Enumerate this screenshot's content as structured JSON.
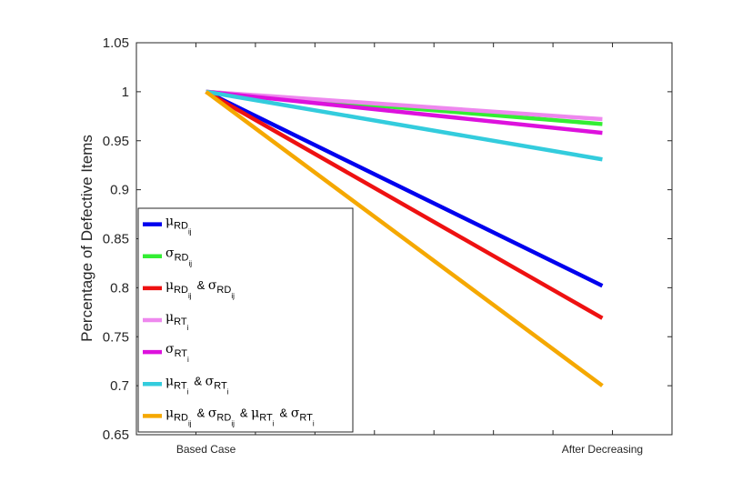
{
  "chart_data": {
    "type": "line",
    "categories": [
      "Based Case",
      "After Decreasing"
    ],
    "ylabel": "Percentage of Defective Items",
    "ylim": [
      0.65,
      1.05
    ],
    "yticks": [
      "0.65",
      "0.7",
      "0.75",
      "0.8",
      "0.85",
      "0.9",
      "0.95",
      "1",
      "1.05"
    ],
    "grid": false,
    "legend_position": "bottom-left",
    "series": [
      {
        "name": "μ_RD_ij",
        "values": [
          1.0,
          0.802
        ],
        "color": "#0000ee",
        "legend": [
          {
            "t": "μ",
            "k": "sym"
          },
          {
            "t": "RD",
            "k": "sub"
          },
          {
            "t": "ij",
            "k": "subsub"
          }
        ]
      },
      {
        "name": "σ_RD_ij",
        "values": [
          1.0,
          0.967
        ],
        "color": "#33ee33",
        "legend": [
          {
            "t": "σ",
            "k": "sym"
          },
          {
            "t": "RD",
            "k": "sub"
          },
          {
            "t": "ij",
            "k": "subsub"
          }
        ]
      },
      {
        "name": "μ_RD_ij & σ_RD_ij",
        "values": [
          1.0,
          0.769
        ],
        "color": "#ee1111",
        "legend": [
          {
            "t": "μ",
            "k": "sym"
          },
          {
            "t": "RD",
            "k": "sub"
          },
          {
            "t": "ij",
            "k": "subsub"
          },
          {
            "t": "&",
            "k": "amp"
          },
          {
            "t": "σ",
            "k": "sym"
          },
          {
            "t": "RD",
            "k": "sub"
          },
          {
            "t": "ij",
            "k": "subsub"
          }
        ]
      },
      {
        "name": "μ_RT_i",
        "values": [
          1.0,
          0.972
        ],
        "color": "#ee88ee",
        "legend": [
          {
            "t": "μ",
            "k": "sym"
          },
          {
            "t": "RT",
            "k": "sub"
          },
          {
            "t": "i",
            "k": "subsub"
          }
        ]
      },
      {
        "name": "σ_RT_i",
        "values": [
          1.0,
          0.958
        ],
        "color": "#dd11dd",
        "legend": [
          {
            "t": "σ",
            "k": "sym"
          },
          {
            "t": "RT",
            "k": "sub"
          },
          {
            "t": "i",
            "k": "subsub"
          }
        ]
      },
      {
        "name": "μ_RT_i & σ_RT_i",
        "values": [
          1.0,
          0.931
        ],
        "color": "#33ccdd",
        "legend": [
          {
            "t": "μ",
            "k": "sym"
          },
          {
            "t": "RT",
            "k": "sub"
          },
          {
            "t": "i",
            "k": "subsub"
          },
          {
            "t": "&",
            "k": "amp"
          },
          {
            "t": "σ",
            "k": "sym"
          },
          {
            "t": "RT",
            "k": "sub"
          },
          {
            "t": "i",
            "k": "subsub"
          }
        ]
      },
      {
        "name": "μ_RD_ij & σ_RD_ij & μ_RT_i & σ_RT_i",
        "values": [
          1.0,
          0.7
        ],
        "color": "#f5a800",
        "legend": [
          {
            "t": "μ",
            "k": "sym"
          },
          {
            "t": "RD",
            "k": "sub"
          },
          {
            "t": "ij",
            "k": "subsub"
          },
          {
            "t": "&",
            "k": "amp"
          },
          {
            "t": "σ",
            "k": "sym"
          },
          {
            "t": "RD",
            "k": "sub"
          },
          {
            "t": "ij",
            "k": "subsub"
          },
          {
            "t": "&",
            "k": "amp"
          },
          {
            "t": "μ",
            "k": "sym"
          },
          {
            "t": "RT",
            "k": "sub"
          },
          {
            "t": "i",
            "k": "subsub"
          },
          {
            "t": "&",
            "k": "amp"
          },
          {
            "t": "σ",
            "k": "sym"
          },
          {
            "t": "RT",
            "k": "sub"
          },
          {
            "t": "i",
            "k": "subsub"
          }
        ]
      }
    ]
  }
}
